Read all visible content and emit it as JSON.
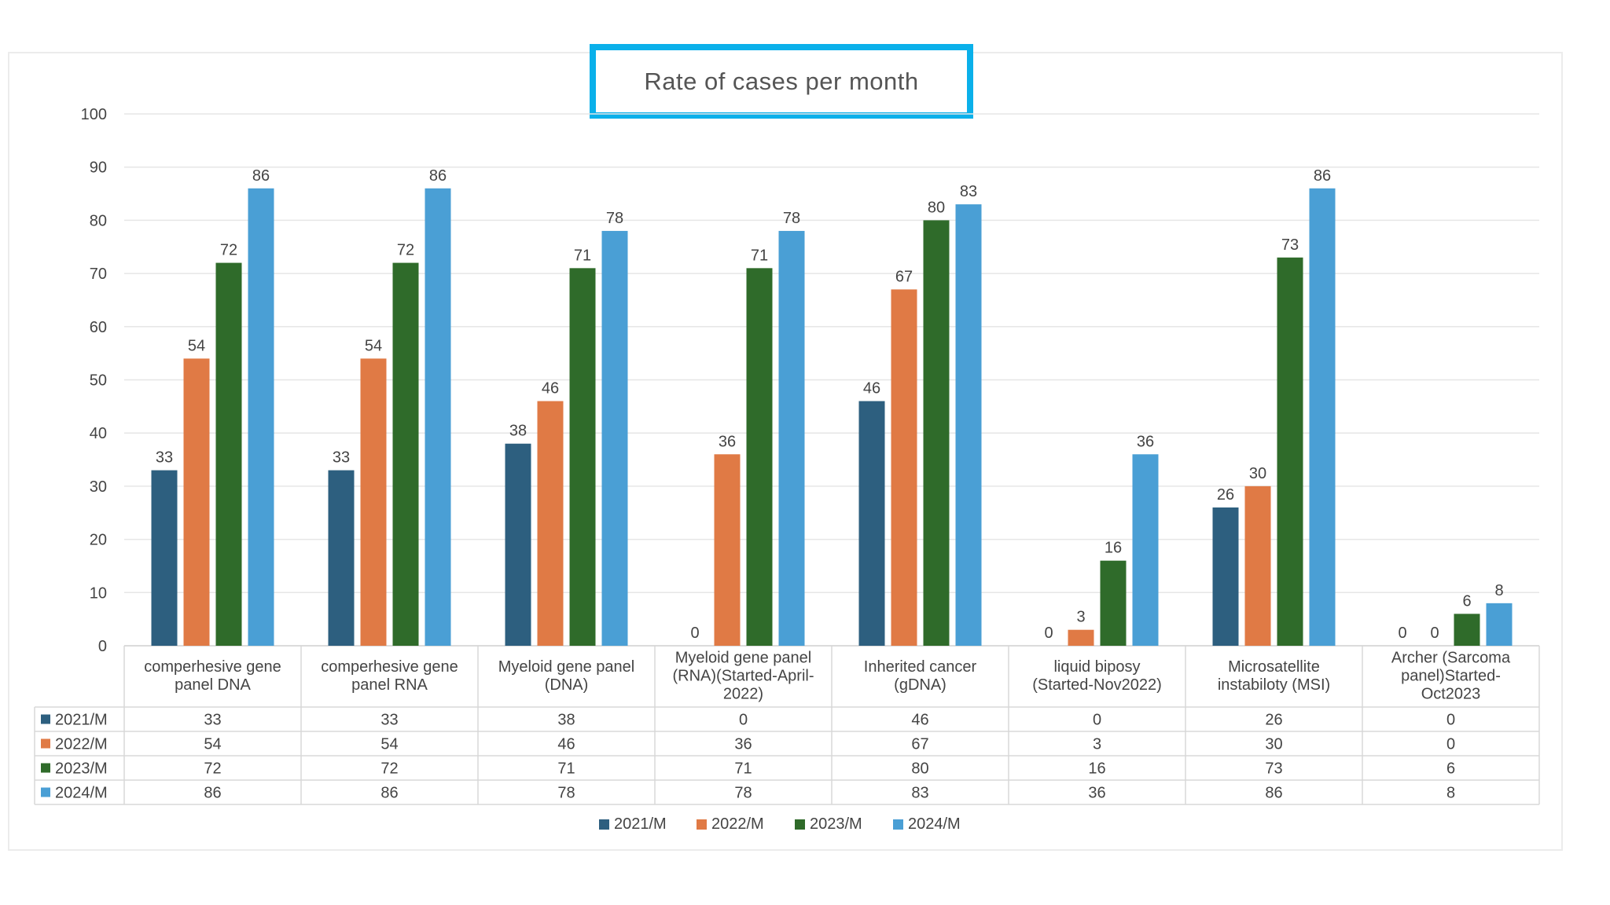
{
  "chart_data": {
    "type": "bar",
    "title": "Rate of cases per month",
    "categories": [
      [
        "comperhesive gene",
        "panel DNA"
      ],
      [
        "comperhesive gene",
        "panel RNA"
      ],
      [
        "Myeloid gene panel",
        "(DNA)"
      ],
      [
        "Myeloid gene panel",
        "(RNA)(Started-April-",
        "2022)"
      ],
      [
        "Inherited cancer",
        "(gDNA)"
      ],
      [
        "liquid biposy",
        "(Started-Nov2022)"
      ],
      [
        "Microsatellite",
        "instabiloty (MSI)"
      ],
      [
        "Archer (Sarcoma",
        "panel)Started-",
        "Oct2023"
      ]
    ],
    "series": [
      {
        "name": "2021/M",
        "color": "#2d5f7f",
        "values": [
          33,
          33,
          38,
          0,
          46,
          0,
          26,
          0
        ]
      },
      {
        "name": "2022/M",
        "color": "#e07a45",
        "values": [
          54,
          54,
          46,
          36,
          67,
          3,
          30,
          0
        ]
      },
      {
        "name": "2023/M",
        "color": "#2f6b2a",
        "values": [
          72,
          72,
          71,
          71,
          80,
          16,
          73,
          6
        ]
      },
      {
        "name": "2024/M",
        "color": "#4a9fd5",
        "values": [
          86,
          86,
          78,
          78,
          83,
          36,
          86,
          8
        ]
      }
    ],
    "ylim": [
      0,
      100
    ],
    "yticks": [
      0,
      10,
      20,
      30,
      40,
      50,
      60,
      70,
      80,
      90,
      100
    ],
    "xlabel": "",
    "ylabel": "",
    "grid": true,
    "legend": "bottom-center",
    "data_table": true
  }
}
